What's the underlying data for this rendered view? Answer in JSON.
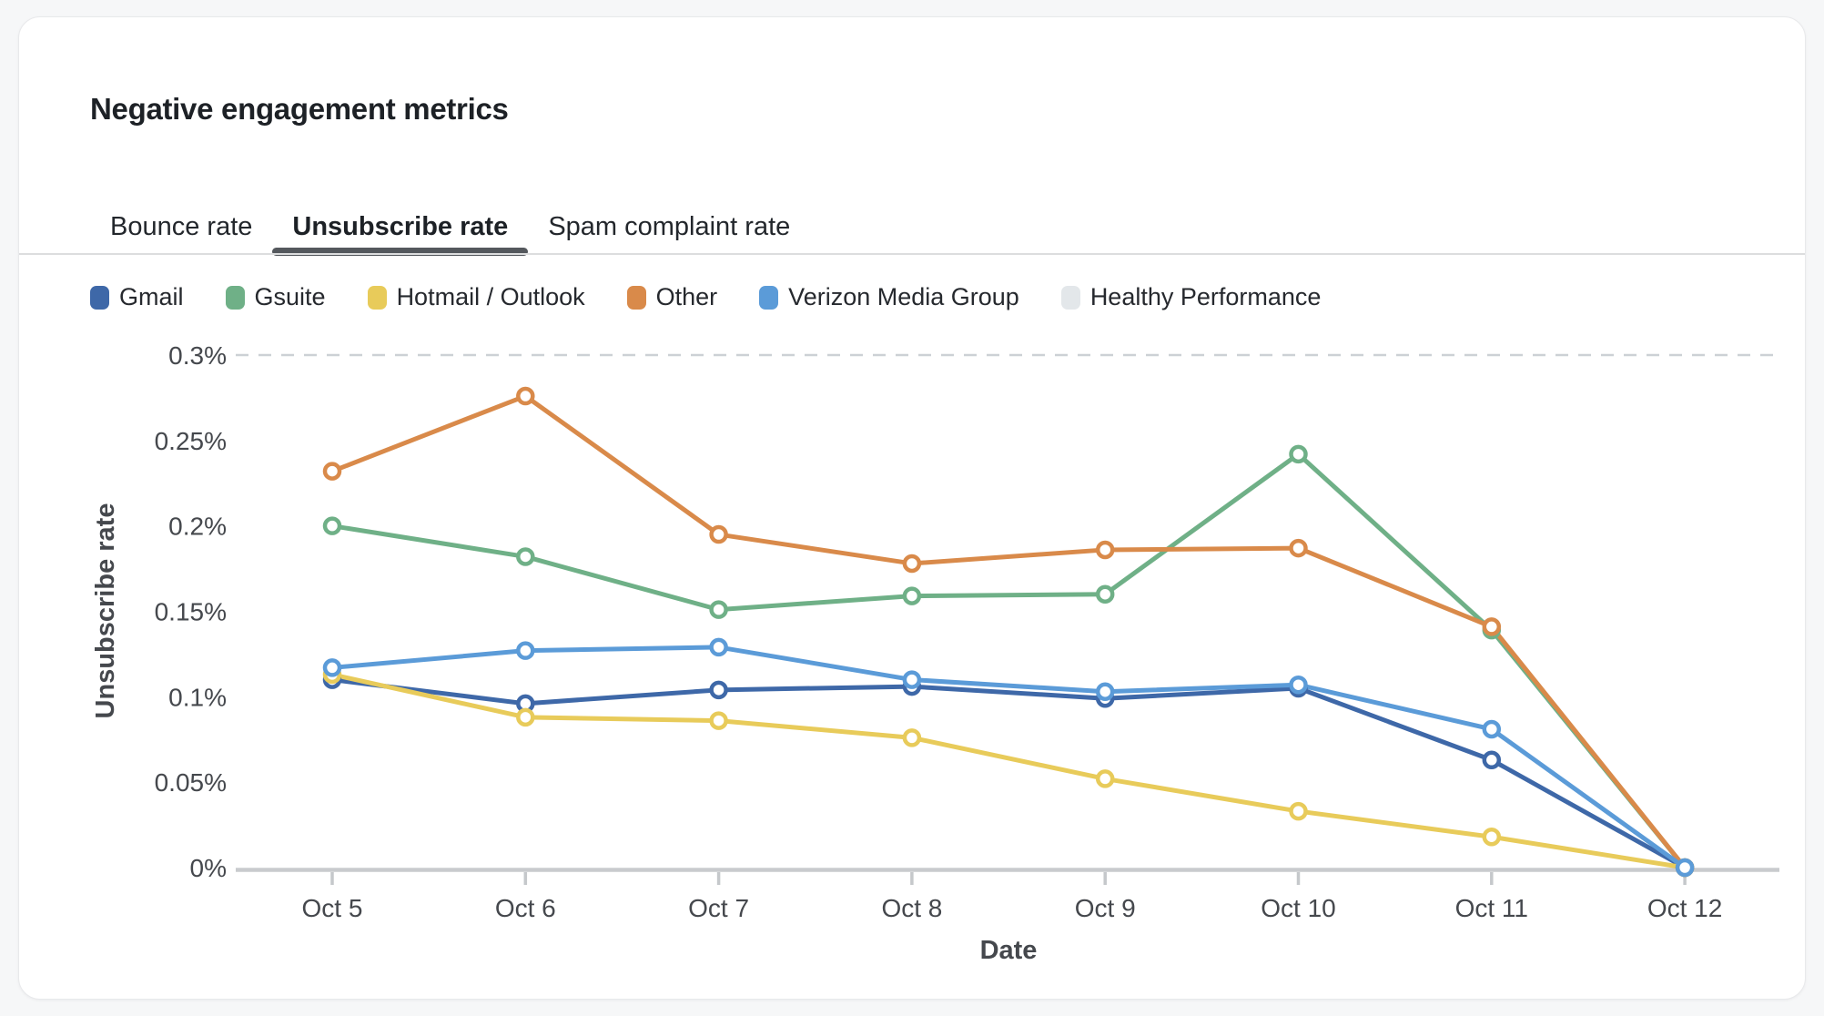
{
  "card": {
    "title": "Negative engagement metrics"
  },
  "tabs": [
    {
      "label": "Bounce rate",
      "active": false
    },
    {
      "label": "Unsubscribe rate",
      "active": true
    },
    {
      "label": "Spam complaint rate",
      "active": false
    }
  ],
  "chart_data": {
    "type": "line",
    "categories": [
      "Oct 5",
      "Oct 6",
      "Oct 7",
      "Oct 8",
      "Oct 9",
      "Oct 10",
      "Oct 11",
      "Oct 12"
    ],
    "xlabel": "Date",
    "ylabel": "Unsubscribe rate",
    "ylim": [
      0,
      0.3
    ],
    "yticks": [
      {
        "value": 0,
        "label": "0%"
      },
      {
        "value": 0.05,
        "label": "0.05%"
      },
      {
        "value": 0.1,
        "label": "0.1%"
      },
      {
        "value": 0.15,
        "label": "0.15%"
      },
      {
        "value": 0.2,
        "label": "0.2%"
      },
      {
        "value": 0.25,
        "label": "0.25%"
      },
      {
        "value": 0.3,
        "label": "0.3%"
      }
    ],
    "grid": "threshold-line-only",
    "legend_position": "top-left",
    "series": [
      {
        "name": "Gmail",
        "color": "#3e68a8",
        "markers": true,
        "style": "solid",
        "values": [
          0.11,
          0.096,
          0.104,
          0.106,
          0.099,
          0.105,
          0.063,
          0
        ]
      },
      {
        "name": "Gsuite",
        "color": "#6fb087",
        "markers": true,
        "style": "solid",
        "values": [
          0.2,
          0.182,
          0.151,
          0.159,
          0.16,
          0.242,
          0.139,
          0
        ]
      },
      {
        "name": "Hotmail / Outlook",
        "color": "#e8cb5a",
        "markers": true,
        "style": "solid",
        "values": [
          0.113,
          0.088,
          0.086,
          0.076,
          0.052,
          0.033,
          0.018,
          0
        ]
      },
      {
        "name": "Other",
        "color": "#d98a4a",
        "markers": true,
        "style": "solid",
        "values": [
          0.232,
          0.276,
          0.195,
          0.178,
          0.186,
          0.187,
          0.141,
          0
        ]
      },
      {
        "name": "Verizon Media Group",
        "color": "#5b9bd8",
        "markers": true,
        "style": "solid",
        "values": [
          0.117,
          0.127,
          0.129,
          0.11,
          0.103,
          0.107,
          0.081,
          0
        ]
      },
      {
        "name": "Healthy Performance",
        "color": "#cfd4d8",
        "swatch_color": "#e3e7ea",
        "markers": false,
        "style": "dashed",
        "values": [
          0.3,
          0.3,
          0.3,
          0.3,
          0.3,
          0.3,
          0.3,
          0.3
        ]
      }
    ],
    "colors": {
      "axis_line": "#c9cbce",
      "tick_mark": "#c5c8cb",
      "tick_text": "#45484d",
      "axis_title_text": "#45484d",
      "threshold_dash": "#ccd1d5"
    }
  }
}
